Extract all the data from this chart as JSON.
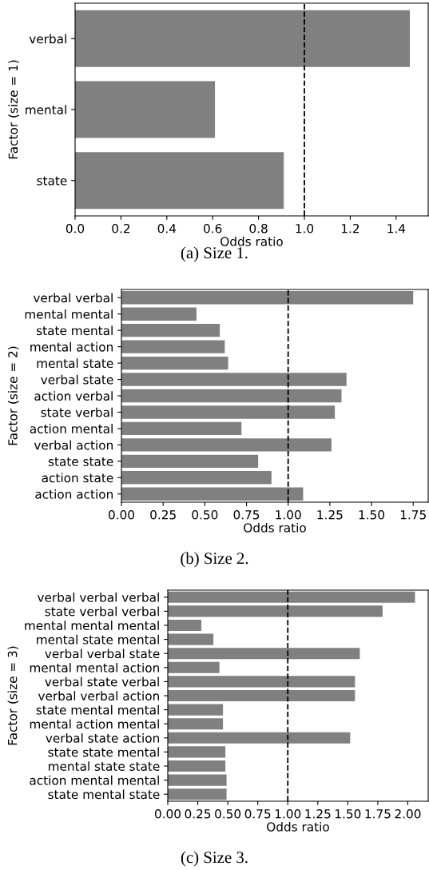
{
  "chart_data": [
    {
      "type": "bar",
      "orientation": "horizontal",
      "title": "(a) Size 1.",
      "xlabel": "Odds ratio",
      "ylabel": "Factor (size = 1)",
      "categories": [
        "verbal",
        "mental",
        "state"
      ],
      "values": [
        1.46,
        0.61,
        0.91
      ],
      "color": "#808080",
      "xlim": [
        0,
        1.54
      ],
      "xticks": [
        {
          "value": 0,
          "label": "0.0"
        },
        0.2,
        0.4,
        0.6,
        0.8,
        {
          "value": 1,
          "label": "1.0"
        },
        1.2,
        1.4
      ],
      "ref_lines": [
        {
          "axis": "x",
          "value": 1,
          "color": "#000000",
          "line_style": "dashed"
        }
      ],
      "grid": false,
      "legend": false
    },
    {
      "type": "bar",
      "orientation": "horizontal",
      "title": "(b) Size 2.",
      "xlabel": "Odds ratio",
      "ylabel": "Factor (size = 2)",
      "categories": [
        "verbal verbal",
        "mental mental",
        "state mental",
        "mental action",
        "mental state",
        "verbal state",
        "action verbal",
        "state verbal",
        "action mental",
        "verbal action",
        "state state",
        "action state",
        "action action"
      ],
      "values": [
        1.75,
        0.45,
        0.59,
        0.62,
        0.64,
        1.35,
        1.32,
        1.28,
        0.72,
        1.26,
        0.82,
        0.9,
        1.09
      ],
      "color": "#808080",
      "xlim": [
        0,
        1.84
      ],
      "xticks": [
        {
          "value": 0,
          "label": "0.00"
        },
        {
          "value": 0.25,
          "label": "0.25"
        },
        {
          "value": 0.5,
          "label": "0.50"
        },
        {
          "value": 0.75,
          "label": "0.75"
        },
        {
          "value": 1,
          "label": "1.00"
        },
        {
          "value": 1.25,
          "label": "1.25"
        },
        {
          "value": 1.5,
          "label": "1.50"
        },
        {
          "value": 1.75,
          "label": "1.75"
        }
      ],
      "ref_lines": [
        {
          "axis": "x",
          "value": 1,
          "color": "#000000",
          "line_style": "dashed"
        }
      ],
      "grid": false,
      "legend": false
    },
    {
      "type": "bar",
      "orientation": "horizontal",
      "title": "(c) Size 3.",
      "xlabel": "Odds ratio",
      "ylabel": "Factor (size = 3)",
      "categories": [
        "verbal verbal verbal",
        "state verbal verbal",
        "mental mental mental",
        "mental state mental",
        "verbal verbal state",
        "mental mental action",
        "verbal state verbal",
        "verbal verbal action",
        "state mental mental",
        "mental action mental",
        "verbal state action",
        "state state mental",
        "mental state state",
        "action mental mental",
        "state mental state"
      ],
      "values": [
        2.06,
        1.79,
        0.28,
        0.38,
        1.6,
        0.43,
        1.56,
        1.56,
        0.46,
        0.46,
        1.52,
        0.48,
        0.48,
        0.49,
        0.49
      ],
      "color": "#808080",
      "xlim": [
        0,
        2.17
      ],
      "xticks": [
        {
          "value": 0,
          "label": "0.00"
        },
        {
          "value": 0.25,
          "label": "0.25"
        },
        {
          "value": 0.5,
          "label": "0.50"
        },
        {
          "value": 0.75,
          "label": "0.75"
        },
        {
          "value": 1,
          "label": "1.00"
        },
        {
          "value": 1.25,
          "label": "1.25"
        },
        {
          "value": 1.5,
          "label": "1.50"
        },
        {
          "value": 1.75,
          "label": "1.75"
        },
        {
          "value": 2,
          "label": "2.00"
        }
      ],
      "ref_lines": [
        {
          "axis": "x",
          "value": 1,
          "color": "#000000",
          "line_style": "dashed"
        }
      ],
      "grid": false,
      "legend": false
    }
  ]
}
